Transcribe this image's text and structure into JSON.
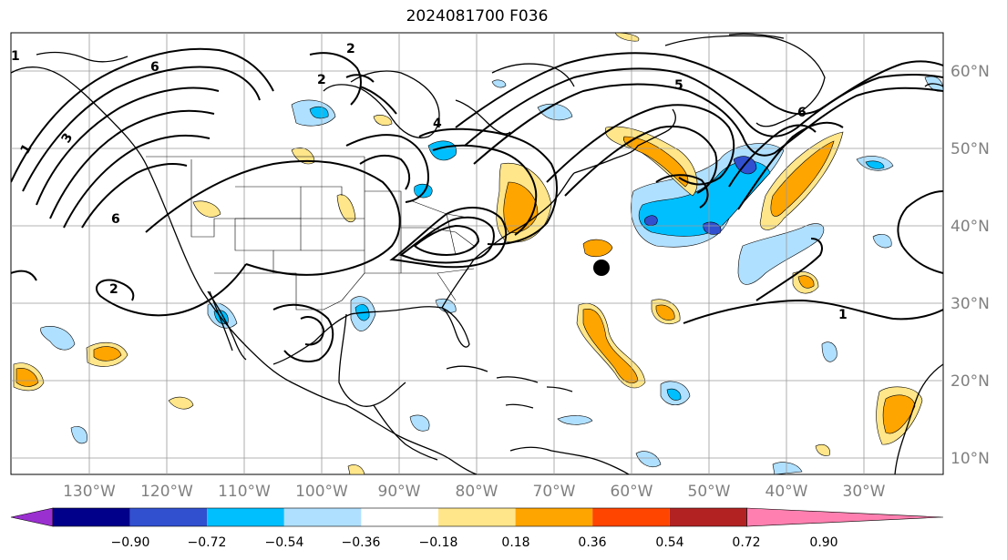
{
  "title": "2024081700 F036",
  "map": {
    "lon_labels": [
      "130°W",
      "120°W",
      "110°W",
      "100°W",
      "90°W",
      "80°W",
      "70°W",
      "60°W",
      "50°W",
      "40°W",
      "30°W"
    ],
    "lat_labels": [
      "60°N",
      "50°N",
      "40°N",
      "30°N",
      "20°N",
      "10°N"
    ],
    "contour_labels": [
      "1",
      "2",
      "3",
      "4",
      "5",
      "6"
    ],
    "marker": "black-dot-storm-center"
  },
  "colorbar": {
    "ticks": [
      "−0.90",
      "−0.72",
      "−0.54",
      "−0.36",
      "−0.18",
      "0.18",
      "0.36",
      "0.54",
      "0.72",
      "0.90"
    ],
    "colors": [
      "#9b30d0",
      "#00008b",
      "#3050d0",
      "#00bfff",
      "#b0e0ff",
      "#ffffff",
      "#ffe68a",
      "#ffa500",
      "#ff4500",
      "#b22222",
      "#ff80b0"
    ]
  }
}
